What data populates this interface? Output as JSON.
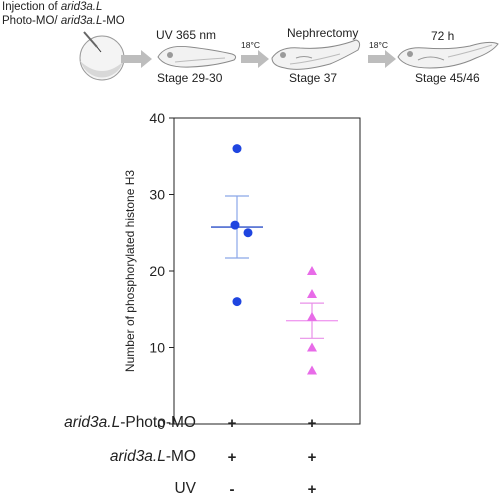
{
  "workflow": {
    "injection_prefix": "Injection of ",
    "gene_italic": "arid3a.L",
    "injection_line2_a": "Photo-MO/ ",
    "injection_line2_gene": "arid3a.L",
    "injection_line2_b": "-MO",
    "uv_label": "UV 365 nm",
    "stage_1": "Stage 29-30",
    "temp_1": "18°C",
    "nephrectomy_label": "Nephrectomy",
    "stage_2": "Stage 37",
    "temp_2": "18°C",
    "time_label": "72 h",
    "stage_3": "Stage 45/46"
  },
  "conditions": {
    "rows": [
      {
        "gene": "arid3a.L",
        "suffix": "-Photo-MO",
        "values": [
          "+",
          "+"
        ]
      },
      {
        "gene": "arid3a.L",
        "suffix": "-MO",
        "values": [
          "+",
          "+"
        ]
      },
      {
        "gene": "",
        "suffix": "UV",
        "values": [
          "-",
          "+"
        ]
      }
    ]
  },
  "chart_data": {
    "type": "scatter",
    "ylabel": "Number of phosphorylated histone H3",
    "ylim": [
      0,
      40
    ],
    "yticks": [
      0,
      10,
      20,
      30,
      40
    ],
    "grid": false,
    "series": [
      {
        "color": "#1f45e0",
        "marker": "circle",
        "points": [
          36,
          26,
          25,
          16
        ],
        "jitter": [
          0,
          0,
          1,
          0
        ],
        "mean": 25.75,
        "sem_upper": 29.8,
        "sem_lower": 21.7,
        "mean_color": "#2b4fc8",
        "sem_color": "#8aa6e8"
      },
      {
        "color": "#e86be8",
        "marker": "triangle",
        "points": [
          20,
          17,
          14,
          10,
          7
        ],
        "jitter": [
          0,
          0,
          0,
          0,
          0
        ],
        "mean": 13.5,
        "sem_upper": 15.8,
        "sem_lower": 11.2,
        "mean_color": "#f09df0",
        "sem_color": "#e890e8"
      }
    ]
  }
}
